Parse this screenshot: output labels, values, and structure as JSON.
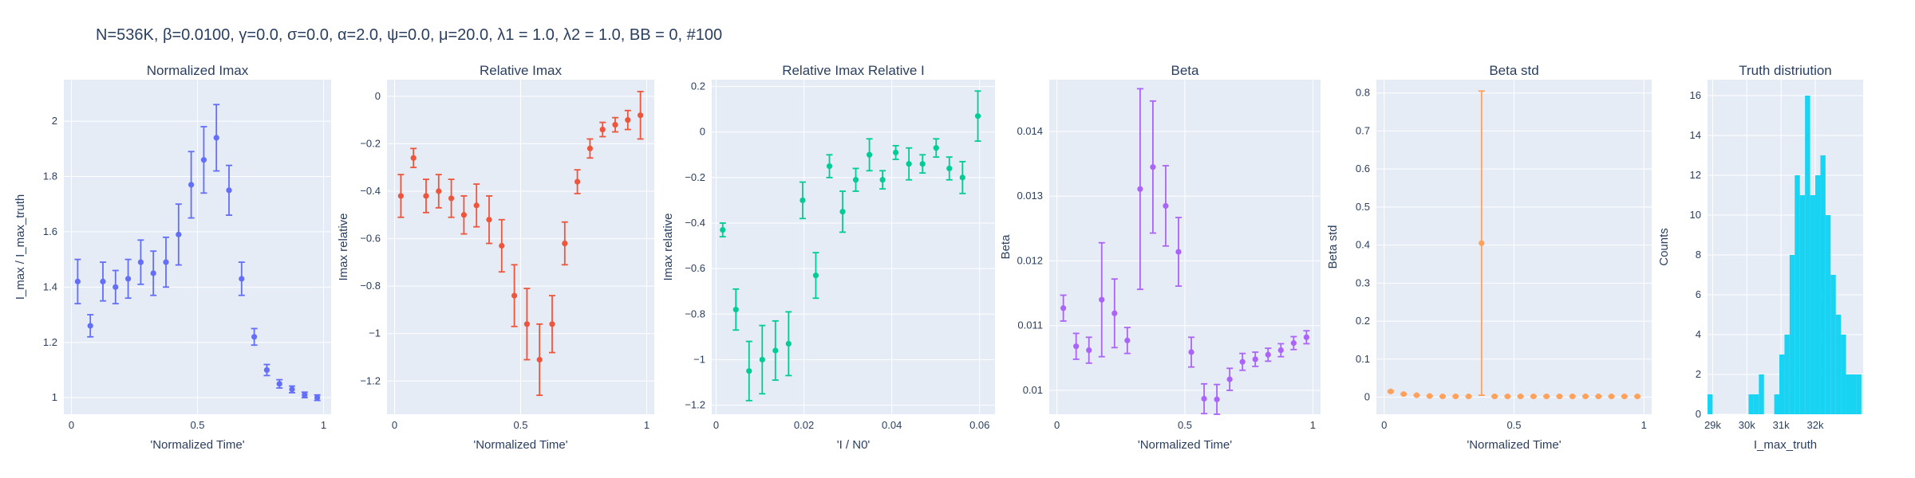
{
  "figure_title": "N=536K, β=0.0100, γ=0.0, σ=0.0,  α=2.0, ψ=0.0, μ=20.0, λ1 = 1.0, λ2 = 1.0, BB = 0, #100",
  "colors": {
    "plot_bg": "#E5ECF6",
    "grid": "#FFFFFF",
    "text": "#2a3f5f",
    "blue": "#636EFA",
    "red": "#EF553B",
    "green": "#00CC96",
    "purple": "#AB63FA",
    "orange": "#FFA15A",
    "cyan": "#19D3F3"
  },
  "chart_data": [
    {
      "type": "scatter",
      "title": "Normalized Imax",
      "xlabel": "'Normalized Time'",
      "ylabel": "I_max / I_max_truth",
      "color": "blue",
      "xlim": [
        -0.03,
        1.03
      ],
      "ylim": [
        0.94,
        2.15
      ],
      "xticks": [
        0,
        0.5,
        1
      ],
      "xtick_labels": [
        "0",
        "0.5",
        "1"
      ],
      "yticks": [
        1,
        1.2,
        1.4,
        1.6,
        1.8,
        2
      ],
      "ytick_labels": [
        "1",
        "1.2",
        "1.4",
        "1.6",
        "1.8",
        "2"
      ],
      "x": [
        0.025,
        0.075,
        0.125,
        0.175,
        0.225,
        0.275,
        0.325,
        0.375,
        0.425,
        0.475,
        0.525,
        0.575,
        0.625,
        0.675,
        0.725,
        0.775,
        0.825,
        0.875,
        0.925,
        0.975
      ],
      "y": [
        1.42,
        1.26,
        1.42,
        1.4,
        1.43,
        1.49,
        1.45,
        1.49,
        1.59,
        1.77,
        1.86,
        1.94,
        1.75,
        1.43,
        1.22,
        1.1,
        1.05,
        1.03,
        1.01,
        1.0
      ],
      "err": [
        0.08,
        0.04,
        0.07,
        0.06,
        0.07,
        0.08,
        0.08,
        0.09,
        0.11,
        0.12,
        0.12,
        0.12,
        0.09,
        0.06,
        0.03,
        0.02,
        0.015,
        0.012,
        0.01,
        0.01
      ]
    },
    {
      "type": "scatter",
      "title": "Relative Imax",
      "xlabel": "'Normalized Time'",
      "ylabel": "Imax relative",
      "color": "red",
      "xlim": [
        -0.03,
        1.03
      ],
      "ylim": [
        -1.34,
        0.07
      ],
      "xticks": [
        0,
        0.5,
        1
      ],
      "xtick_labels": [
        "0",
        "0.5",
        "1"
      ],
      "yticks": [
        -1.2,
        -1,
        -0.8,
        -0.6,
        -0.4,
        -0.2,
        0
      ],
      "ytick_labels": [
        "−1.2",
        "−1",
        "−0.8",
        "−0.6",
        "−0.4",
        "−0.2",
        "0"
      ],
      "x": [
        0.025,
        0.075,
        0.125,
        0.175,
        0.225,
        0.275,
        0.325,
        0.375,
        0.425,
        0.475,
        0.525,
        0.575,
        0.625,
        0.675,
        0.725,
        0.775,
        0.825,
        0.875,
        0.925,
        0.975
      ],
      "y": [
        -0.42,
        -0.26,
        -0.42,
        -0.4,
        -0.43,
        -0.5,
        -0.46,
        -0.52,
        -0.63,
        -0.84,
        -0.96,
        -1.11,
        -0.96,
        -0.62,
        -0.36,
        -0.22,
        -0.14,
        -0.12,
        -0.1,
        -0.08
      ],
      "err": [
        0.09,
        0.04,
        0.07,
        0.07,
        0.08,
        0.08,
        0.09,
        0.1,
        0.11,
        0.13,
        0.15,
        0.15,
        0.12,
        0.09,
        0.05,
        0.04,
        0.03,
        0.03,
        0.04,
        0.1
      ]
    },
    {
      "type": "scatter",
      "title": "Relative Imax Relative I",
      "xlabel": "'I / N0'",
      "ylabel": "Imax relative",
      "color": "green",
      "xlim": [
        -0.001,
        0.0635
      ],
      "ylim": [
        -1.24,
        0.23
      ],
      "xticks": [
        0,
        0.02,
        0.04,
        0.06
      ],
      "xtick_labels": [
        "0",
        "0.02",
        "0.04",
        "0.06"
      ],
      "yticks": [
        -1.2,
        -1,
        -0.8,
        -0.6,
        -0.4,
        -0.2,
        0,
        0.2
      ],
      "ytick_labels": [
        "−1.2",
        "−1",
        "−0.8",
        "−0.6",
        "−0.4",
        "−0.2",
        "0",
        "0.2"
      ],
      "x": [
        0.0015,
        0.0045,
        0.0075,
        0.0105,
        0.0135,
        0.0165,
        0.0197,
        0.0227,
        0.0258,
        0.0288,
        0.0318,
        0.0349,
        0.0379,
        0.0409,
        0.0439,
        0.047,
        0.0501,
        0.0531,
        0.0561,
        0.0596
      ],
      "y": [
        -0.43,
        -0.78,
        -1.05,
        -1.0,
        -0.96,
        -0.93,
        -0.3,
        -0.63,
        -0.15,
        -0.35,
        -0.21,
        -0.1,
        -0.21,
        -0.09,
        -0.14,
        -0.14,
        -0.07,
        -0.16,
        -0.2,
        0.07
      ],
      "err": [
        0.03,
        0.09,
        0.13,
        0.15,
        0.13,
        0.14,
        0.08,
        0.1,
        0.05,
        0.09,
        0.05,
        0.07,
        0.04,
        0.03,
        0.07,
        0.04,
        0.04,
        0.05,
        0.07,
        0.11
      ]
    },
    {
      "type": "scatter",
      "title": "Beta",
      "xlabel": "'Normalized Time'",
      "ylabel": "Beta",
      "color": "purple",
      "xlim": [
        -0.03,
        1.03
      ],
      "ylim": [
        0.00963,
        0.0148
      ],
      "xticks": [
        0,
        0.5,
        1
      ],
      "xtick_labels": [
        "0",
        "0.5",
        "1"
      ],
      "yticks": [
        0.01,
        0.011,
        0.012,
        0.013,
        0.014
      ],
      "ytick_labels": [
        "0.01",
        "0.011",
        "0.012",
        "0.013",
        "0.014"
      ],
      "x": [
        0.025,
        0.075,
        0.125,
        0.175,
        0.225,
        0.275,
        0.325,
        0.375,
        0.425,
        0.475,
        0.525,
        0.575,
        0.625,
        0.675,
        0.725,
        0.775,
        0.825,
        0.875,
        0.925,
        0.975
      ],
      "y": [
        0.01127,
        0.01068,
        0.01062,
        0.0114,
        0.01119,
        0.01077,
        0.01311,
        0.01345,
        0.01285,
        0.01214,
        0.01059,
        0.00987,
        0.00986,
        0.01017,
        0.01044,
        0.01048,
        0.01055,
        0.01062,
        0.01073,
        0.01082
      ],
      "err": [
        0.0002,
        0.0002,
        0.0002,
        0.00088,
        0.00053,
        0.0002,
        0.00155,
        0.00102,
        0.00062,
        0.00053,
        0.00023,
        0.00023,
        0.00023,
        0.00017,
        0.00013,
        0.00011,
        0.0001,
        0.0001,
        0.0001,
        0.0001
      ]
    },
    {
      "type": "scatter",
      "title": "Beta std",
      "xlabel": "'Normalized Time'",
      "ylabel": "Beta std",
      "color": "orange",
      "xlim": [
        -0.03,
        1.03
      ],
      "ylim": [
        -0.045,
        0.835
      ],
      "xticks": [
        0,
        0.5,
        1
      ],
      "xtick_labels": [
        "0",
        "0.5",
        "1"
      ],
      "yticks": [
        0,
        0.1,
        0.2,
        0.3,
        0.4,
        0.5,
        0.6,
        0.7,
        0.8
      ],
      "ytick_labels": [
        "0",
        "0.1",
        "0.2",
        "0.3",
        "0.4",
        "0.5",
        "0.6",
        "0.7",
        "0.8"
      ],
      "x": [
        0.025,
        0.075,
        0.125,
        0.175,
        0.225,
        0.275,
        0.325,
        0.375,
        0.425,
        0.475,
        0.525,
        0.575,
        0.625,
        0.675,
        0.725,
        0.775,
        0.825,
        0.875,
        0.925,
        0.975
      ],
      "y": [
        0.015,
        0.008,
        0.005,
        0.003,
        0.002,
        0.002,
        0.002,
        0.405,
        0.002,
        0.002,
        0.002,
        0.002,
        0.002,
        0.002,
        0.002,
        0.002,
        0.002,
        0.002,
        0.002,
        0.002
      ],
      "err": [
        0.002,
        0.001,
        0.001,
        0.001,
        0.001,
        0.001,
        0.001,
        0.4,
        0.001,
        0.001,
        0.001,
        0.001,
        0.001,
        0.001,
        0.001,
        0.001,
        0.001,
        0.001,
        0.001,
        0.001
      ]
    },
    {
      "type": "bar",
      "title": "Truth distriution",
      "xlabel": "I_max_truth",
      "ylabel": "Counts",
      "color": "cyan",
      "xlim": [
        28850,
        33400
      ],
      "ylim": [
        0,
        16.8
      ],
      "xticks": [
        29000,
        30000,
        31000,
        32000
      ],
      "xtick_labels": [
        "29k",
        "30k",
        "31k",
        "32k"
      ],
      "yticks": [
        0,
        2,
        4,
        6,
        8,
        10,
        12,
        14,
        16
      ],
      "ytick_labels": [
        "0",
        "2",
        "4",
        "6",
        "8",
        "10",
        "12",
        "14",
        "16"
      ],
      "bin_width": 150,
      "bin_start": [
        28850,
        29000,
        29150,
        29300,
        29450,
        29600,
        29750,
        29900,
        30050,
        30200,
        30350,
        30500,
        30650,
        30800,
        30950,
        31100,
        31250,
        31400,
        31550,
        31700,
        31850,
        32000,
        32150,
        32300,
        32450,
        32600,
        32750,
        32900,
        33050,
        33200
      ],
      "counts": [
        1,
        0,
        0,
        0,
        0,
        0,
        0,
        0,
        1,
        1,
        2,
        0,
        0,
        1,
        3,
        4,
        8,
        12,
        11,
        16,
        11,
        12,
        13,
        10,
        7,
        5,
        4,
        2,
        2,
        2
      ]
    }
  ]
}
